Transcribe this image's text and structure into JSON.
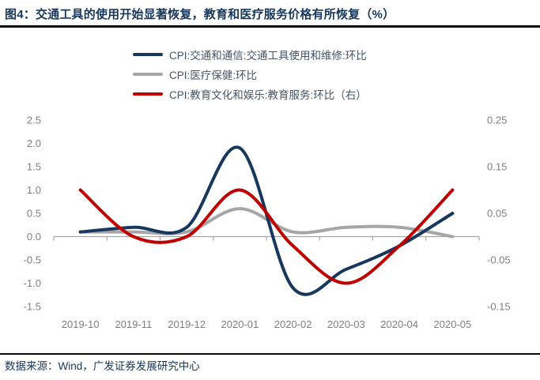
{
  "header": {
    "title": "图4：交通工具的使用开始显著恢复，教育和医疗服务价格有所恢复（%）"
  },
  "footer": {
    "source": "数据来源：Wind，广发证券发展研究中心"
  },
  "colors": {
    "title_navy": "#17375E",
    "series_blue": "#17375E",
    "series_gray": "#A6A6A6",
    "series_red": "#C00000",
    "axis_text": "#7F7F7F",
    "axis_line": "#A6A6A6",
    "rule_black": "#0a0a0a"
  },
  "chart_data": {
    "type": "line",
    "title": "图4：交通工具的使用开始显著恢复，教育和医疗服务价格有所恢复（%）",
    "categories": [
      "2019-10",
      "2019-11",
      "2019-12",
      "2020-01",
      "2020-02",
      "2020-03",
      "2020-04",
      "2020-05"
    ],
    "series": [
      {
        "name": "CPI:交通和通信:交通工具使用和维修:环比",
        "axis": "left",
        "color": "#17375E",
        "z": 2,
        "values": [
          0.1,
          0.2,
          0.2,
          1.9,
          -1.1,
          -0.7,
          -0.2,
          0.5
        ]
      },
      {
        "name": "CPI:医疗保健:环比",
        "axis": "left",
        "color": "#A6A6A6",
        "z": 1,
        "values": [
          0.1,
          0.1,
          0.1,
          0.6,
          0.1,
          0.2,
          0.2,
          0.0
        ]
      },
      {
        "name": "CPI:教育文化和娱乐:教育服务:环比（右）",
        "axis": "right",
        "color": "#C00000",
        "z": 3,
        "values": [
          0.1,
          0.0,
          0.0,
          0.1,
          -0.02,
          -0.1,
          -0.02,
          0.1
        ]
      }
    ],
    "left_axis": {
      "range": [
        -1.5,
        2.5
      ],
      "tick_labels": [
        "2.5",
        "2.0",
        "1.5",
        "1.0",
        "0.5",
        "0.0",
        "-0.5",
        "-1.0",
        "-1.5"
      ]
    },
    "right_axis": {
      "range": [
        -0.15,
        0.25
      ],
      "tick_labels": [
        "0.25",
        "0.15",
        "0.05",
        "-0.05",
        "-0.15"
      ]
    },
    "grid": false,
    "legend_position": "top",
    "smooth": true
  }
}
